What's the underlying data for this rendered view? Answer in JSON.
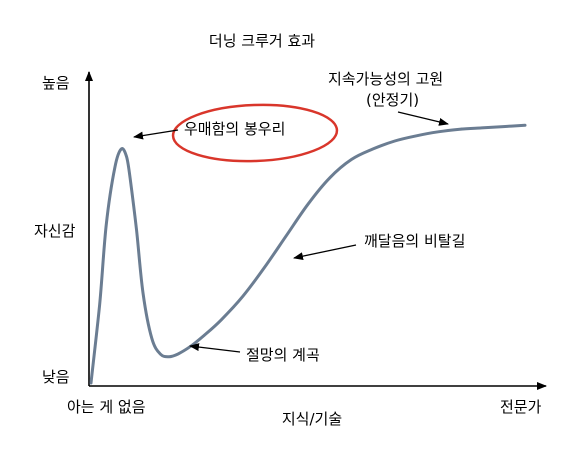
{
  "chart_data": {
    "type": "line",
    "title": "더닝 크루거 효과",
    "xlabel": "지식/기술",
    "ylabel": "자신감",
    "x_tick_labels": {
      "start": "아는 게 없음",
      "end": "전문가"
    },
    "y_tick_labels": {
      "high": "높음",
      "low": "낮음"
    },
    "xlim": [
      0,
      100
    ],
    "ylim": [
      0,
      100
    ],
    "grid": false,
    "legend": "none",
    "series": [
      {
        "color": "#6b7d92",
        "x": [
          0,
          2,
          3.5,
          5.5,
          7,
          8.2,
          9,
          10.5,
          12,
          14,
          16,
          18,
          20,
          23,
          26,
          30,
          35,
          40,
          45,
          50,
          55,
          60,
          65,
          70,
          75,
          80,
          85,
          90,
          95,
          100
        ],
        "y": [
          0,
          30,
          60,
          82,
          89,
          86,
          78,
          58,
          34,
          17,
          11,
          10,
          11,
          14,
          18,
          24,
          33,
          44,
          56,
          68,
          78,
          85,
          89,
          92,
          94,
          95.5,
          96.5,
          97,
          97.5,
          98
        ]
      }
    ],
    "annotations": [
      {
        "text": "우매함의 봉우리",
        "x": 7,
        "y": 89
      },
      {
        "text": "절망의 계곡",
        "x": 20,
        "y": 11
      },
      {
        "text": "깨달음의 비탈길",
        "x": 55,
        "y": 48
      },
      {
        "text": "지속가능성의 고원",
        "text2": "(안정기)",
        "x": 87,
        "y": 95
      }
    ]
  },
  "colors": {
    "curve": "#6b7d92",
    "axis": "#000000",
    "highlight": "#d9362b"
  }
}
